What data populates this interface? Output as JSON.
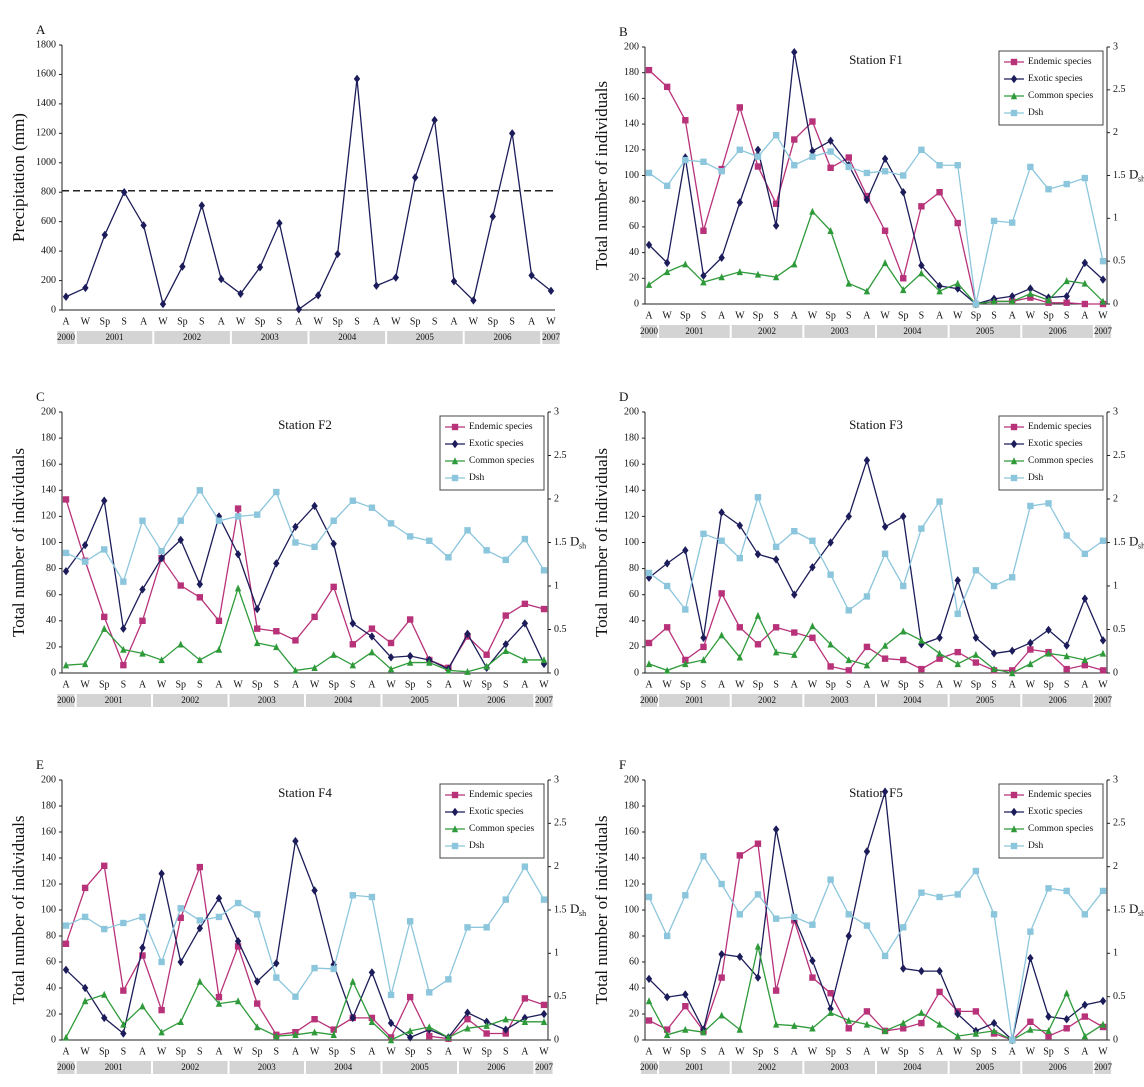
{
  "chart_data": [
    {
      "panel": "A",
      "type": "line",
      "ylabel": "Precipitation (mm)",
      "categories": [
        "A",
        "W",
        "Sp",
        "S",
        "A",
        "W",
        "Sp",
        "S",
        "A",
        "W",
        "Sp",
        "S",
        "A",
        "W",
        "Sp",
        "S",
        "A",
        "W",
        "Sp",
        "S",
        "A",
        "W",
        "Sp",
        "S",
        "A",
        "W"
      ],
      "years": [
        "2000",
        "2001",
        "2002",
        "2003",
        "2004",
        "2005",
        "2006",
        "2007"
      ],
      "series": [
        {
          "color": "#1c1c5a",
          "marker": "diamond",
          "values": [
            90,
            150,
            510,
            800,
            575,
            40,
            295,
            710,
            210,
            110,
            290,
            590,
            5,
            100,
            380,
            1570,
            165,
            220,
            900,
            1290,
            195,
            65,
            635,
            1200,
            235,
            130
          ]
        }
      ],
      "threshold": 810,
      "ylim": [
        0,
        1800
      ],
      "yticks": [
        0,
        200,
        400,
        600,
        800,
        1000,
        1200,
        1400,
        1600,
        1800
      ]
    },
    {
      "panel": "B",
      "type": "line",
      "title": "Station F1",
      "ylabel": "Total number of individuals",
      "y2label": "D",
      "y2label_sub": "sh",
      "categories": [
        "A",
        "W",
        "Sp",
        "S",
        "A",
        "W",
        "Sp",
        "S",
        "A",
        "W",
        "Sp",
        "S",
        "A",
        "W",
        "Sp",
        "S",
        "A",
        "W",
        "Sp",
        "S",
        "A",
        "W",
        "Sp",
        "S",
        "A",
        "W"
      ],
      "years": [
        "2000",
        "2001",
        "2002",
        "2003",
        "2004",
        "2005",
        "2006",
        "2007"
      ],
      "series": [
        {
          "name": "Endemic species",
          "color": "#b8327a",
          "marker": "square",
          "values": [
            182,
            169,
            143,
            57,
            105,
            153,
            107,
            78,
            128,
            142,
            106,
            114,
            84,
            57,
            20,
            76,
            87,
            63,
            0,
            2,
            2,
            5,
            1,
            1,
            0,
            0
          ]
        },
        {
          "name": "Exotic species",
          "color": "#1c1c5a",
          "marker": "diamond",
          "values": [
            46,
            32,
            114,
            22,
            36,
            79,
            120,
            61,
            196,
            119,
            127,
            108,
            81,
            113,
            87,
            30,
            14,
            12,
            0,
            4,
            6,
            12,
            5,
            6,
            32,
            19
          ]
        },
        {
          "name": "Common species",
          "color": "#2e9a3a",
          "marker": "triangle",
          "values": [
            15,
            25,
            31,
            17,
            21,
            25,
            23,
            21,
            31,
            72,
            57,
            16,
            10,
            32,
            11,
            24,
            10,
            16,
            0,
            2,
            2,
            8,
            3,
            18,
            16,
            2
          ]
        },
        {
          "name": "Dsh",
          "color": "#8cc6dc",
          "marker": "square",
          "axis": "y2",
          "values": [
            1.53,
            1.38,
            1.68,
            1.66,
            1.55,
            1.8,
            1.72,
            1.97,
            1.62,
            1.72,
            1.78,
            1.6,
            1.53,
            1.55,
            1.5,
            1.8,
            1.62,
            1.62,
            0,
            0.97,
            0.95,
            1.6,
            1.34,
            1.4,
            1.47,
            0.5
          ]
        }
      ],
      "ylim": [
        0,
        200
      ],
      "yticks": [
        0,
        20,
        40,
        60,
        80,
        100,
        120,
        140,
        160,
        180,
        200
      ],
      "y2lim": [
        0,
        3
      ],
      "y2ticks": [
        0,
        0.5,
        1,
        1.5,
        2,
        2.5,
        3
      ],
      "legend": "upper right"
    },
    {
      "panel": "C",
      "type": "line",
      "title": "Station F2",
      "ylabel": "Total number of individuals",
      "y2label": "D",
      "y2label_sub": "sh",
      "categories": [
        "A",
        "W",
        "Sp",
        "S",
        "A",
        "W",
        "Sp",
        "S",
        "A",
        "W",
        "Sp",
        "S",
        "A",
        "W",
        "Sp",
        "S",
        "A",
        "W",
        "Sp",
        "S",
        "A",
        "W",
        "Sp",
        "S",
        "A",
        "W"
      ],
      "years": [
        "2000",
        "2001",
        "2002",
        "2003",
        "2004",
        "2005",
        "2006",
        "2007"
      ],
      "series": [
        {
          "name": "Endemic species",
          "color": "#b8327a",
          "marker": "square",
          "values": [
            133,
            86,
            43,
            6,
            40,
            88,
            67,
            58,
            40,
            126,
            34,
            32,
            25,
            43,
            66,
            22,
            34,
            23,
            41,
            10,
            4,
            28,
            14,
            44,
            53,
            49
          ]
        },
        {
          "name": "Exotic species",
          "color": "#1c1c5a",
          "marker": "diamond",
          "values": [
            78,
            98,
            132,
            34,
            64,
            88,
            102,
            68,
            120,
            91,
            49,
            84,
            112,
            128,
            99,
            38,
            28,
            12,
            13,
            10,
            3,
            30,
            4,
            22,
            38,
            7
          ]
        },
        {
          "name": "Common species",
          "color": "#2e9a3a",
          "marker": "triangle",
          "values": [
            6,
            7,
            34,
            18,
            15,
            10,
            22,
            10,
            18,
            65,
            23,
            20,
            2,
            4,
            14,
            6,
            16,
            3,
            8,
            8,
            2,
            1,
            5,
            17,
            10,
            10
          ]
        },
        {
          "name": "Dsh",
          "color": "#8cc6dc",
          "marker": "square",
          "axis": "y2",
          "values": [
            1.38,
            1.28,
            1.42,
            1.05,
            1.75,
            1.4,
            1.75,
            2.1,
            1.75,
            1.8,
            1.82,
            2.08,
            1.5,
            1.45,
            1.75,
            1.98,
            1.9,
            1.72,
            1.57,
            1.52,
            1.33,
            1.64,
            1.41,
            1.3,
            1.54,
            1.18
          ]
        }
      ],
      "ylim": [
        0,
        200
      ],
      "yticks": [
        0,
        20,
        40,
        60,
        80,
        100,
        120,
        140,
        160,
        180,
        200
      ],
      "y2lim": [
        0,
        3
      ],
      "y2ticks": [
        0,
        0.5,
        1,
        1.5,
        2,
        2.5,
        3
      ],
      "legend": "upper right"
    },
    {
      "panel": "D",
      "type": "line",
      "title": "Station F3",
      "ylabel": "Total number of individuals",
      "y2label": "D",
      "y2label_sub": "sh",
      "categories": [
        "A",
        "W",
        "Sp",
        "S",
        "A",
        "W",
        "Sp",
        "S",
        "A",
        "W",
        "Sp",
        "S",
        "A",
        "W",
        "Sp",
        "S",
        "A",
        "W",
        "Sp",
        "S",
        "A",
        "W",
        "Sp",
        "S",
        "A",
        "W"
      ],
      "years": [
        "2000",
        "2001",
        "2002",
        "2003",
        "2004",
        "2005",
        "2006",
        "2007"
      ],
      "series": [
        {
          "name": "Endemic species",
          "color": "#b8327a",
          "marker": "square",
          "values": [
            23,
            35,
            10,
            20,
            61,
            35,
            22,
            35,
            31,
            27,
            5,
            2,
            20,
            11,
            10,
            3,
            11,
            16,
            8,
            2,
            2,
            18,
            16,
            3,
            6,
            2
          ]
        },
        {
          "name": "Exotic species",
          "color": "#1c1c5a",
          "marker": "diamond",
          "values": [
            73,
            84,
            94,
            27,
            123,
            113,
            91,
            87,
            60,
            81,
            100,
            120,
            163,
            112,
            120,
            22,
            27,
            71,
            27,
            15,
            17,
            23,
            33,
            21,
            57,
            25
          ]
        },
        {
          "name": "Common species",
          "color": "#2e9a3a",
          "marker": "triangle",
          "values": [
            7,
            2,
            7,
            10,
            29,
            12,
            44,
            16,
            14,
            36,
            22,
            10,
            6,
            21,
            32,
            25,
            15,
            7,
            14,
            3,
            0,
            7,
            15,
            13,
            10,
            15
          ]
        },
        {
          "name": "Dsh",
          "color": "#8cc6dc",
          "marker": "square",
          "axis": "y2",
          "values": [
            1.15,
            1.0,
            0.73,
            1.6,
            1.52,
            1.32,
            2.02,
            1.45,
            1.63,
            1.52,
            1.13,
            0.72,
            0.88,
            1.37,
            1.0,
            1.66,
            1.97,
            0.68,
            1.18,
            1.0,
            1.1,
            1.92,
            1.95,
            1.58,
            1.37,
            1.52
          ]
        }
      ],
      "ylim": [
        0,
        200
      ],
      "yticks": [
        0,
        20,
        40,
        60,
        80,
        100,
        120,
        140,
        160,
        180,
        200
      ],
      "y2lim": [
        0,
        3
      ],
      "y2ticks": [
        0,
        0.5,
        1,
        1.5,
        2,
        2.5,
        3
      ],
      "legend": "upper right"
    },
    {
      "panel": "E",
      "type": "line",
      "title": "Station F4",
      "ylabel": "Total number of individuals",
      "y2label": "D",
      "y2label_sub": "sh",
      "categories": [
        "A",
        "W",
        "Sp",
        "S",
        "A",
        "W",
        "Sp",
        "S",
        "A",
        "W",
        "Sp",
        "S",
        "A",
        "W",
        "Sp",
        "S",
        "A",
        "W",
        "Sp",
        "S",
        "A",
        "W",
        "Sp",
        "S",
        "A",
        "W"
      ],
      "years": [
        "2000",
        "2001",
        "2002",
        "2003",
        "2004",
        "2005",
        "2006",
        "2007"
      ],
      "series": [
        {
          "name": "Endemic species",
          "color": "#b8327a",
          "marker": "square",
          "values": [
            74,
            117,
            134,
            38,
            65,
            23,
            94,
            133,
            33,
            72,
            28,
            4,
            6,
            16,
            8,
            17,
            17,
            2,
            33,
            3,
            1,
            16,
            5,
            5,
            32,
            27
          ]
        },
        {
          "name": "Exotic species",
          "color": "#1c1c5a",
          "marker": "diamond",
          "values": [
            54,
            40,
            17,
            5,
            71,
            128,
            60,
            86,
            109,
            76,
            45,
            59,
            153,
            115,
            58,
            17,
            52,
            13,
            2,
            8,
            2,
            21,
            14,
            8,
            17,
            20
          ]
        },
        {
          "name": "Common species",
          "color": "#2e9a3a",
          "marker": "triangle",
          "values": [
            2,
            30,
            35,
            12,
            26,
            6,
            14,
            45,
            28,
            30,
            10,
            3,
            4,
            6,
            4,
            45,
            14,
            0,
            7,
            10,
            2,
            9,
            11,
            16,
            14,
            14
          ]
        },
        {
          "name": "Dsh",
          "color": "#8cc6dc",
          "marker": "square",
          "axis": "y2",
          "values": [
            1.32,
            1.42,
            1.28,
            1.35,
            1.42,
            0.9,
            1.52,
            1.38,
            1.42,
            1.58,
            1.45,
            0.72,
            0.5,
            0.83,
            0.82,
            1.67,
            1.65,
            0.52,
            1.37,
            0.55,
            0.7,
            1.3,
            1.3,
            1.62,
            2.0,
            1.62
          ]
        }
      ],
      "ylim": [
        0,
        200
      ],
      "yticks": [
        0,
        20,
        40,
        60,
        80,
        100,
        120,
        140,
        160,
        180,
        200
      ],
      "y2lim": [
        0,
        3
      ],
      "y2ticks": [
        0,
        0.5,
        1,
        1.5,
        2,
        2.5,
        3
      ],
      "legend": "upper right"
    },
    {
      "panel": "F",
      "type": "line",
      "title": "Station F5",
      "ylabel": "Total number of individuals",
      "y2label": "D",
      "y2label_sub": "sh",
      "categories": [
        "A",
        "W",
        "Sp",
        "S",
        "A",
        "W",
        "Sp",
        "S",
        "A",
        "W",
        "Sp",
        "S",
        "A",
        "W",
        "Sp",
        "S",
        "A",
        "W",
        "Sp",
        "S",
        "A",
        "W",
        "Sp",
        "S",
        "A",
        "W"
      ],
      "years": [
        "2000",
        "2001",
        "2002",
        "2003",
        "2004",
        "2005",
        "2006",
        "2007"
      ],
      "series": [
        {
          "name": "Endemic species",
          "color": "#b8327a",
          "marker": "square",
          "values": [
            15,
            8,
            26,
            7,
            48,
            142,
            151,
            38,
            92,
            48,
            36,
            9,
            22,
            7,
            9,
            13,
            37,
            22,
            22,
            5,
            0,
            14,
            3,
            9,
            18,
            10
          ]
        },
        {
          "name": "Exotic species",
          "color": "#1c1c5a",
          "marker": "diamond",
          "values": [
            47,
            33,
            35,
            8,
            66,
            64,
            48,
            162,
            94,
            61,
            24,
            80,
            145,
            191,
            55,
            53,
            53,
            20,
            7,
            13,
            0,
            63,
            18,
            16,
            27,
            30
          ]
        },
        {
          "name": "Common species",
          "color": "#2e9a3a",
          "marker": "triangle",
          "values": [
            30,
            4,
            8,
            6,
            19,
            8,
            72,
            12,
            11,
            9,
            21,
            15,
            12,
            7,
            13,
            21,
            12,
            3,
            5,
            7,
            0,
            8,
            7,
            36,
            3,
            12
          ]
        },
        {
          "name": "Dsh",
          "color": "#8cc6dc",
          "marker": "square",
          "axis": "y2",
          "values": [
            1.65,
            1.2,
            1.67,
            2.12,
            1.8,
            1.45,
            1.68,
            1.4,
            1.42,
            1.33,
            1.85,
            1.45,
            1.32,
            0.97,
            1.3,
            1.7,
            1.65,
            1.68,
            1.95,
            1.45,
            0,
            1.25,
            1.75,
            1.72,
            1.45,
            1.72
          ]
        }
      ],
      "ylim": [
        0,
        200
      ],
      "yticks": [
        0,
        20,
        40,
        60,
        80,
        100,
        120,
        140,
        160,
        180,
        200
      ],
      "y2lim": [
        0,
        3
      ],
      "y2ticks": [
        0,
        0.5,
        1,
        1.5,
        2,
        2.5,
        3
      ],
      "legend": "upper right"
    }
  ]
}
